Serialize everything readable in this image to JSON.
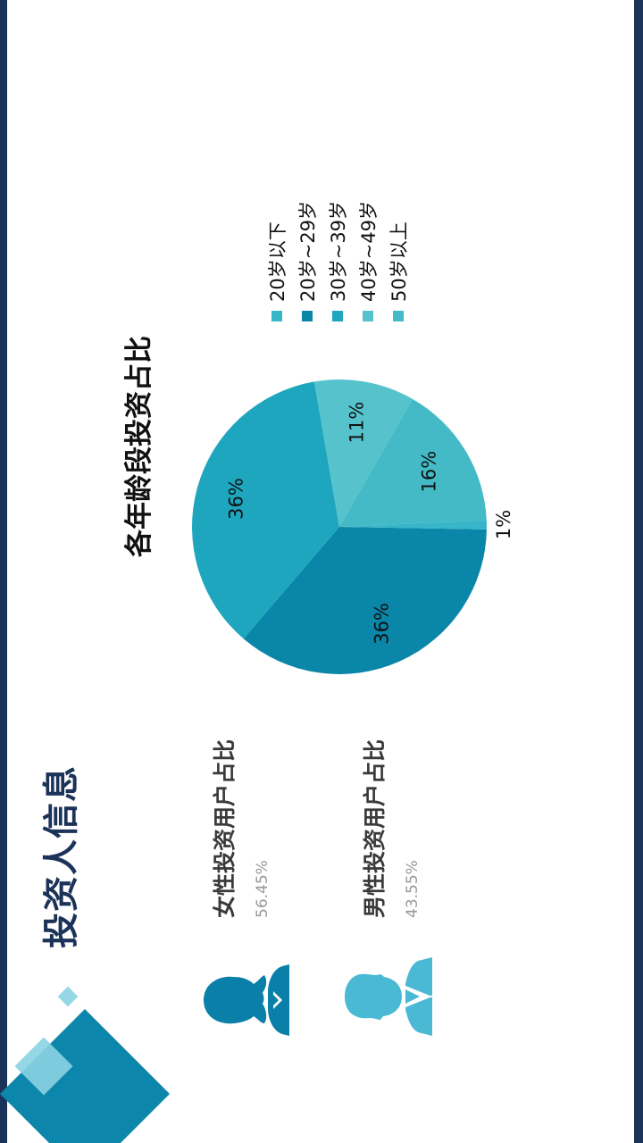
{
  "page_title": "投资人信息",
  "gender_stats": [
    {
      "label": "女性投资用户占比",
      "value": "56.45%",
      "icon": "female-user-icon",
      "color": "#0a7fa8"
    },
    {
      "label": "男性投资用户占比",
      "value": "43.55%",
      "icon": "male-user-icon",
      "color": "#4ab9d4"
    }
  ],
  "colors": {
    "frame": "#1b3358",
    "title": "#1b3358"
  },
  "chart_data": {
    "type": "pie",
    "title": "各年龄段投资占比",
    "legend_position": "right",
    "slices": [
      {
        "label": "20岁以下",
        "value": 1,
        "display": "1%",
        "color": "#37b5c9"
      },
      {
        "label": "20岁~29岁",
        "value": 36,
        "display": "36%",
        "color": "#0a86a8"
      },
      {
        "label": "30岁~39岁",
        "value": 36,
        "display": "36%",
        "color": "#1ea6bf"
      },
      {
        "label": "40岁~49岁",
        "value": 11,
        "display": "11%",
        "color": "#56c3cc"
      },
      {
        "label": "50岁以上",
        "value": 16,
        "display": "16%",
        "color": "#43bac6"
      }
    ]
  }
}
